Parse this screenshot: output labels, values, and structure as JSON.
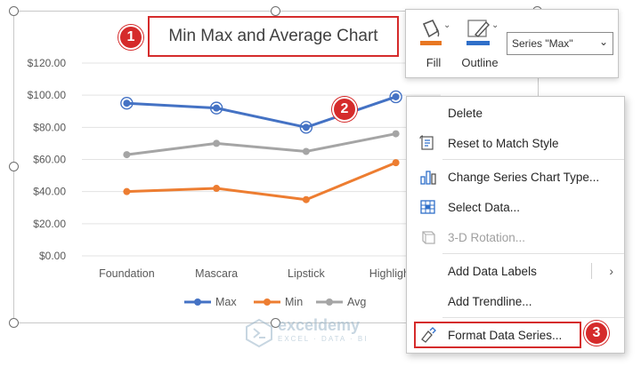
{
  "chart": {
    "title": "Min Max and Average Chart"
  },
  "badges": [
    "1",
    "2",
    "3"
  ],
  "ribbon": {
    "fill_label": "Fill",
    "outline_label": "Outline",
    "series_value": "Series \"Max\"",
    "fill_color": "#e87722",
    "outline_color": "#2f6fc9"
  },
  "context_menu": {
    "items": [
      {
        "label": "Delete",
        "icon": "none",
        "enabled": true
      },
      {
        "label": "Reset to Match Style",
        "icon": "reset-style-icon",
        "enabled": true
      },
      {
        "label": "Change Series Chart Type...",
        "icon": "chart-type-icon",
        "enabled": true
      },
      {
        "label": "Select Data...",
        "icon": "select-data-icon",
        "enabled": true
      },
      {
        "label": "3-D Rotation...",
        "icon": "rotation-icon",
        "enabled": false
      },
      {
        "label": "Add Data Labels",
        "icon": "none",
        "enabled": true,
        "submenu": true
      },
      {
        "label": "Add Trendline...",
        "icon": "none",
        "enabled": true
      },
      {
        "label": "Format Data Series...",
        "icon": "format-series-icon",
        "enabled": true
      }
    ]
  },
  "watermark": {
    "name": "exceldemy",
    "tagline": "EXCEL · DATA · BI"
  },
  "chart_data": {
    "type": "line",
    "title": "Min Max and Average Chart",
    "categories": [
      "Foundation",
      "Mascara",
      "Lipstick",
      "Highlighter"
    ],
    "y_ticks": [
      "$0.00",
      "$20.00",
      "$40.00",
      "$60.00",
      "$80.00",
      "$100.00",
      "$120.00"
    ],
    "ylim": [
      0,
      120
    ],
    "grid": true,
    "legend": "bottom",
    "series": [
      {
        "name": "Max",
        "color": "#4472c4",
        "values": [
          95,
          92,
          80,
          99
        ]
      },
      {
        "name": "Min",
        "color": "#ed7d31",
        "values": [
          40,
          42,
          35,
          58
        ]
      },
      {
        "name": "Avg",
        "color": "#a5a5a5",
        "values": [
          63,
          70,
          65,
          76
        ]
      }
    ]
  }
}
